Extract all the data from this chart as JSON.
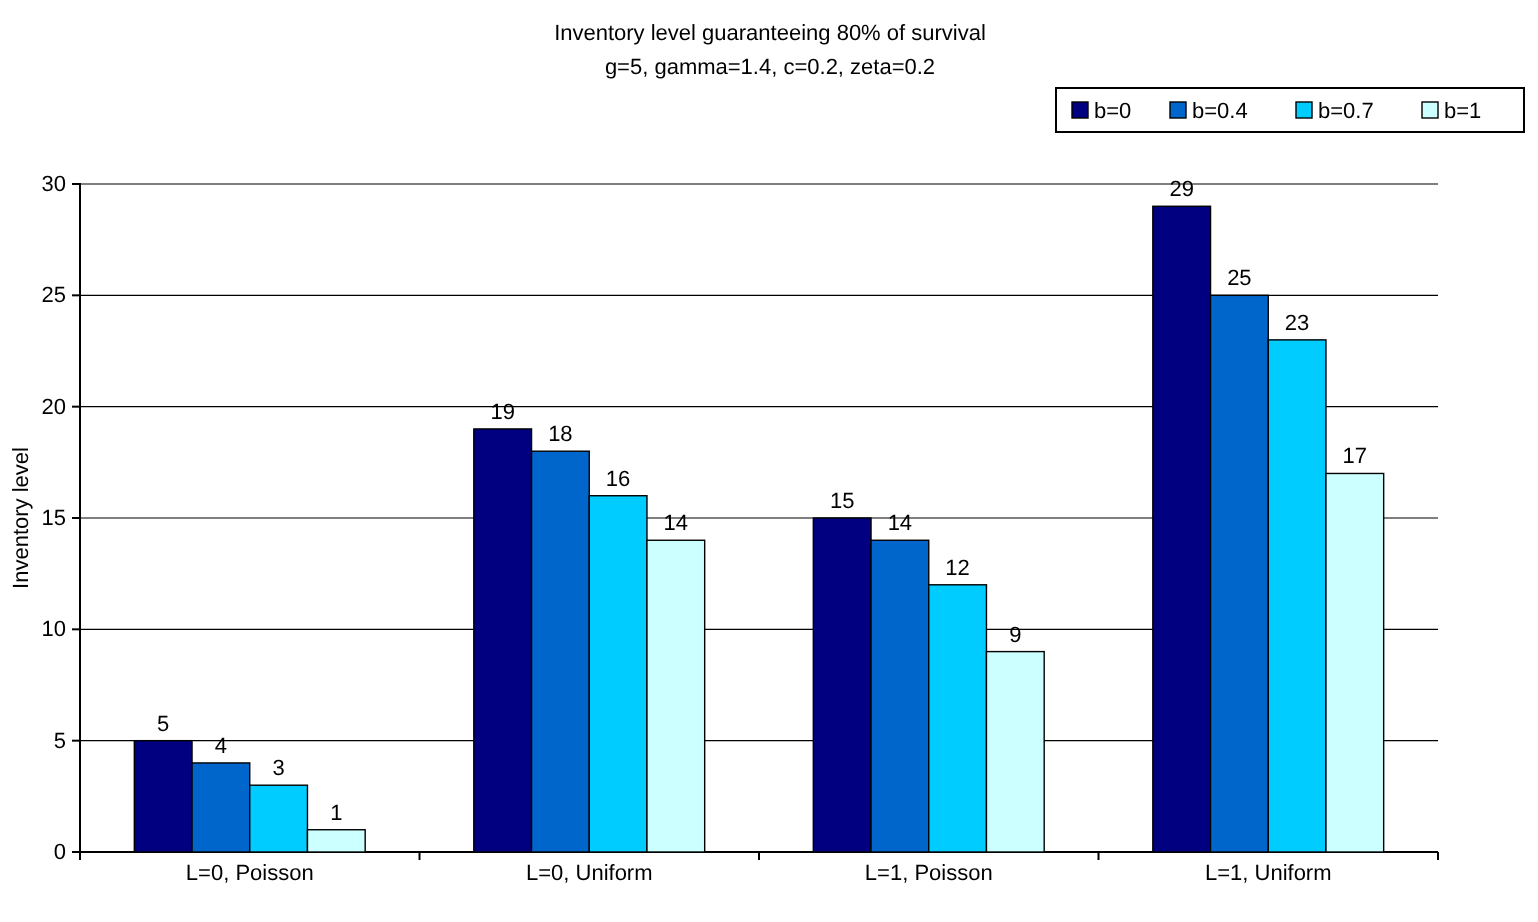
{
  "chart_data": {
    "type": "bar",
    "title": "Inventory level guaranteeing 80% of survival",
    "subtitle": "g=5, gamma=1.4, c=0.2, zeta=0.2",
    "ylabel": "Inventory level",
    "categories": [
      "L=0, Poisson",
      "L=0, Uniform",
      "L=1, Poisson",
      "L=1, Uniform"
    ],
    "series": [
      {
        "name": "b=0",
        "color": "#000080",
        "values": [
          5,
          19,
          15,
          29
        ]
      },
      {
        "name": "b=0.4",
        "color": "#0066cc",
        "values": [
          4,
          18,
          14,
          25
        ]
      },
      {
        "name": "b=0.7",
        "color": "#00ccff",
        "values": [
          3,
          16,
          12,
          23
        ]
      },
      {
        "name": "b=1",
        "color": "#ccffff",
        "values": [
          1,
          14,
          9,
          17
        ]
      }
    ],
    "ylim": [
      0,
      30
    ],
    "yticks": [
      0,
      5,
      10,
      15,
      20,
      25,
      30
    ],
    "grid": "y",
    "legend": "top right",
    "data_labels": true
  }
}
